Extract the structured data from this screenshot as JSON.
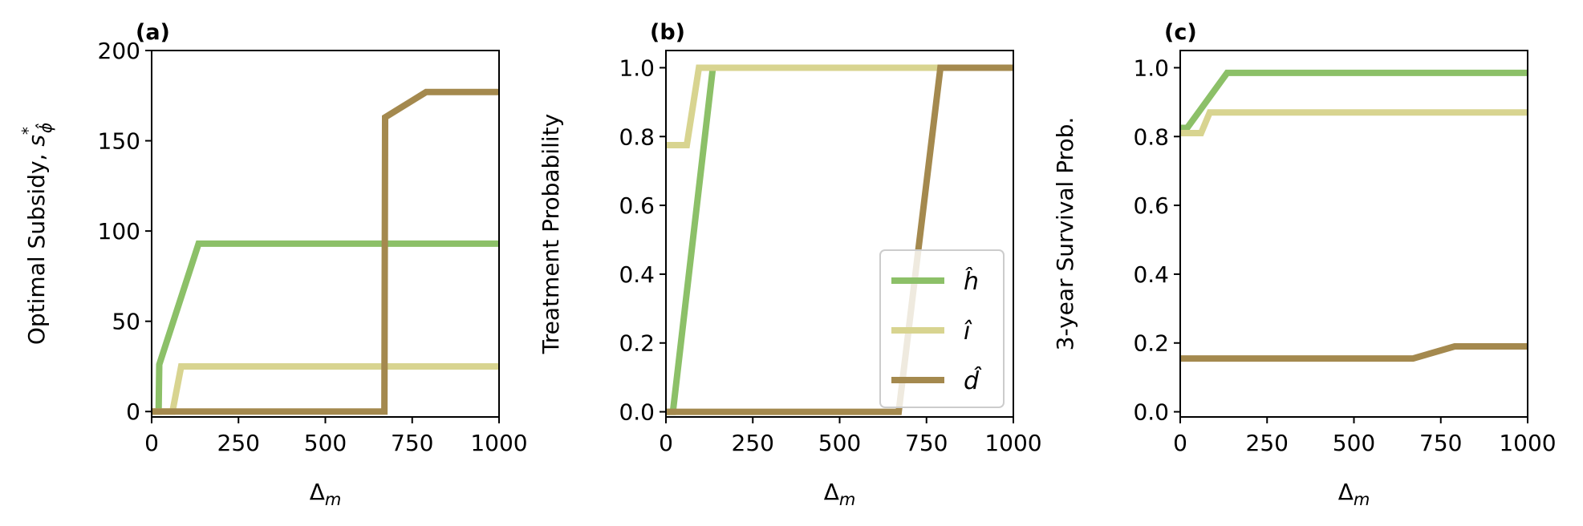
{
  "chart_data": [
    {
      "type": "line",
      "panel_label": "(a)",
      "title": "",
      "xlabel": "Δ",
      "xlabel_sub": "m",
      "ylabel": "Optimal Subsidy, ",
      "ylabel_var": "s",
      "ylabel_sup": "*",
      "ylabel_sub": "ϕ̂",
      "xlim": [
        0,
        1000
      ],
      "ylim": [
        -3,
        200
      ],
      "xticks": [
        0,
        250,
        500,
        750,
        1000
      ],
      "yticks": [
        0,
        50,
        100,
        150,
        200
      ],
      "xtick_labels": [
        "0",
        "250",
        "500",
        "750",
        "1000"
      ],
      "ytick_labels": [
        "0",
        "50",
        "100",
        "150",
        "200"
      ],
      "legend": null,
      "series": [
        {
          "key": "h",
          "name": "ĥ",
          "color": "#8cc068",
          "points": [
            [
              0,
              0
            ],
            [
              20,
              0
            ],
            [
              22,
              26
            ],
            [
              135,
              93
            ],
            [
              1000,
              93
            ]
          ]
        },
        {
          "key": "i",
          "name": "î",
          "color": "#d8d490",
          "points": [
            [
              0,
              0
            ],
            [
              60,
              0
            ],
            [
              85,
              25
            ],
            [
              1000,
              25
            ]
          ]
        },
        {
          "key": "d",
          "name": "d̂",
          "color": "#a4894e",
          "points": [
            [
              0,
              0
            ],
            [
              670,
              0
            ],
            [
              672,
              163
            ],
            [
              790,
              177
            ],
            [
              1000,
              177
            ]
          ]
        }
      ]
    },
    {
      "type": "line",
      "panel_label": "(b)",
      "title": "",
      "xlabel": "Δ",
      "xlabel_sub": "m",
      "ylabel": "Treatment Probability",
      "xlim": [
        0,
        1000
      ],
      "ylim": [
        -0.015,
        1.05
      ],
      "xticks": [
        0,
        250,
        500,
        750,
        1000
      ],
      "yticks": [
        0.0,
        0.2,
        0.4,
        0.6,
        0.8,
        1.0
      ],
      "xtick_labels": [
        "0",
        "250",
        "500",
        "750",
        "1000"
      ],
      "ytick_labels": [
        "0.0",
        "0.2",
        "0.4",
        "0.6",
        "0.8",
        "1.0"
      ],
      "legend": {
        "placement": "lower-right",
        "entries": [
          "h",
          "i",
          "d"
        ]
      },
      "series": [
        {
          "key": "h",
          "name": "ĥ",
          "color": "#8cc068",
          "points": [
            [
              0,
              0
            ],
            [
              20,
              0
            ],
            [
              135,
              1.0
            ],
            [
              1000,
              1.0
            ]
          ]
        },
        {
          "key": "i",
          "name": "î",
          "color": "#d8d490",
          "points": [
            [
              0,
              0.775
            ],
            [
              60,
              0.775
            ],
            [
              95,
              1.0
            ],
            [
              1000,
              1.0
            ]
          ]
        },
        {
          "key": "d",
          "name": "d̂",
          "color": "#a4894e",
          "points": [
            [
              0,
              0
            ],
            [
              670,
              0
            ],
            [
              790,
              1.0
            ],
            [
              1000,
              1.0
            ]
          ]
        }
      ]
    },
    {
      "type": "line",
      "panel_label": "(c)",
      "title": "",
      "xlabel": "Δ",
      "xlabel_sub": "m",
      "ylabel": "3-year Survival Prob.",
      "xlim": [
        0,
        1000
      ],
      "ylim": [
        -0.015,
        1.05
      ],
      "xticks": [
        0,
        250,
        500,
        750,
        1000
      ],
      "yticks": [
        0.0,
        0.2,
        0.4,
        0.6,
        0.8,
        1.0
      ],
      "xtick_labels": [
        "0",
        "250",
        "500",
        "750",
        "1000"
      ],
      "ytick_labels": [
        "0.0",
        "0.2",
        "0.4",
        "0.6",
        "0.8",
        "1.0"
      ],
      "legend": null,
      "series": [
        {
          "key": "h",
          "name": "ĥ",
          "color": "#8cc068",
          "points": [
            [
              0,
              0.825
            ],
            [
              20,
              0.825
            ],
            [
              135,
              0.985
            ],
            [
              1000,
              0.985
            ]
          ]
        },
        {
          "key": "i",
          "name": "î",
          "color": "#d8d490",
          "points": [
            [
              0,
              0.81
            ],
            [
              60,
              0.81
            ],
            [
              85,
              0.87
            ],
            [
              1000,
              0.87
            ]
          ]
        },
        {
          "key": "d",
          "name": "d̂",
          "color": "#a4894e",
          "points": [
            [
              0,
              0.155
            ],
            [
              670,
              0.155
            ],
            [
              790,
              0.19
            ],
            [
              1000,
              0.19
            ]
          ]
        }
      ]
    }
  ]
}
